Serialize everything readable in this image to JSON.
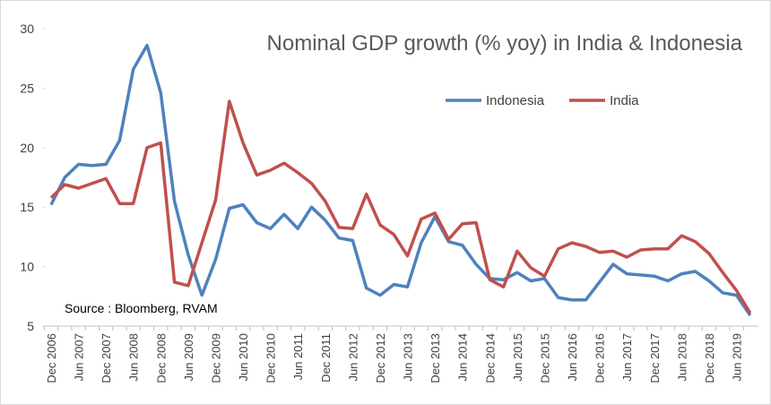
{
  "chart_data": {
    "type": "line",
    "title": "Nominal GDP growth (% yoy) in India & Indonesia",
    "annotation": "Source : Bloomberg, RVAM",
    "categories": [
      "Dec 2006",
      null,
      "Jun 2007",
      null,
      "Dec 2007",
      null,
      "Jun 2008",
      null,
      "Dec 2008",
      null,
      "Jun 2009",
      null,
      "Dec 2009",
      null,
      "Jun 2010",
      null,
      "Dec 2010",
      null,
      "Jun 2011",
      null,
      "Dec 2011",
      null,
      "Jun 2012",
      null,
      "Dec 2012",
      null,
      "Jun 2013",
      null,
      "Dec 2013",
      null,
      "Jun 2014",
      null,
      "Dec 2014",
      null,
      "Jun 2015",
      null,
      "Dec 2015",
      null,
      "Jun 2016",
      null,
      "Dec 2016",
      null,
      "Jun 2017",
      null,
      "Dec 2017",
      null,
      "Jun 2018",
      null,
      "Dec 2018",
      null,
      "Jun 2019",
      null
    ],
    "series": [
      {
        "name": "Indonesia",
        "color": "#4f81bd",
        "values": [
          15.2,
          17.5,
          18.6,
          18.5,
          18.6,
          20.6,
          26.6,
          28.6,
          24.6,
          15.5,
          11.0,
          7.6,
          10.6,
          14.9,
          15.2,
          13.7,
          13.2,
          14.4,
          13.2,
          15.0,
          13.9,
          12.4,
          12.2,
          8.2,
          7.6,
          8.5,
          8.3,
          12.0,
          14.2,
          12.1,
          11.8,
          10.2,
          9.0,
          8.9,
          9.5,
          8.8,
          9.0,
          7.4,
          7.2,
          7.2,
          8.7,
          10.2,
          9.4,
          9.3,
          9.2,
          8.8,
          9.4,
          9.6,
          8.8,
          7.8,
          7.6,
          5.9
        ]
      },
      {
        "name": "India",
        "color": "#c0504d",
        "values": [
          15.8,
          16.9,
          16.6,
          17.0,
          17.4,
          15.3,
          15.3,
          20.0,
          20.4,
          8.7,
          8.4,
          12.0,
          15.6,
          23.9,
          20.4,
          17.7,
          18.1,
          18.7,
          17.9,
          17.0,
          15.5,
          13.3,
          13.2,
          16.1,
          13.5,
          12.7,
          10.9,
          14.0,
          14.5,
          12.3,
          13.6,
          13.7,
          8.9,
          8.3,
          11.3,
          9.9,
          9.2,
          11.5,
          12.0,
          11.7,
          11.2,
          11.3,
          10.8,
          11.4,
          11.5,
          11.5,
          12.6,
          12.1,
          11.1,
          9.5,
          8.0,
          6.1
        ]
      }
    ],
    "ylim": [
      5,
      30
    ],
    "yticks": [
      5,
      10,
      15,
      20,
      25,
      30
    ],
    "grid": false
  }
}
